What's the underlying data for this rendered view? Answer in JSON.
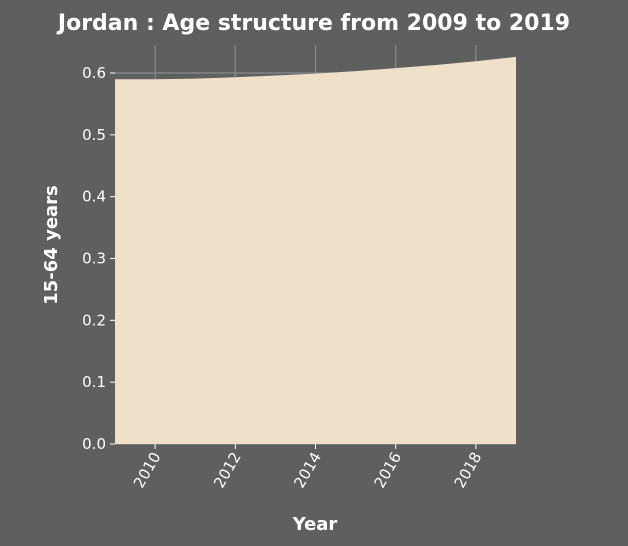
{
  "chart_data": {
    "type": "area",
    "title": "Jordan : Age structure from 2009 to 2019",
    "xlabel": "Year",
    "ylabel": "15-64 years",
    "x": [
      2009,
      2010,
      2011,
      2012,
      2013,
      2014,
      2015,
      2016,
      2017,
      2018,
      2019
    ],
    "series": [
      {
        "values": [
          0.59,
          0.59,
          0.591,
          0.593,
          0.596,
          0.599,
          0.603,
          0.608,
          0.613,
          0.619,
          0.626
        ]
      }
    ],
    "xlim": [
      2009,
      2019
    ],
    "ylim": [
      0,
      0.6
    ],
    "xticks": [
      2010,
      2012,
      2014,
      2016,
      2018
    ],
    "xtick_labels": [
      "2010",
      "2012",
      "2014",
      "2016",
      "2018"
    ],
    "yticks": [
      0.0,
      0.1,
      0.2,
      0.3,
      0.4,
      0.5,
      0.6
    ],
    "ytick_labels": [
      "0.0",
      "0.1",
      "0.2",
      "0.3",
      "0.4",
      "0.5",
      "0.6"
    ],
    "grid": true,
    "colors": {
      "background": "#5f5f5f",
      "plot_background": "#5f5f5f",
      "area_fill": "#efe0c9",
      "grid": "#8a8a8a",
      "text": "#ffffff"
    }
  }
}
